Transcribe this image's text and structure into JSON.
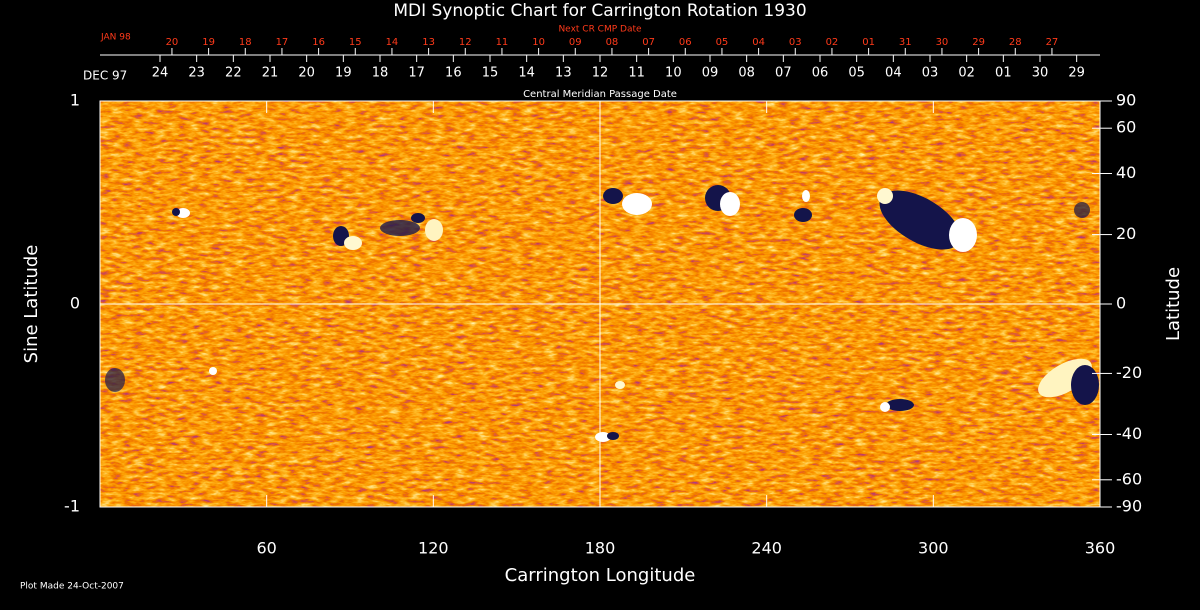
{
  "chart_data": {
    "type": "heatmap",
    "title": "MDI Synoptic Chart for Carrington Rotation 1930",
    "xlabel": "Carrington Longitude",
    "ylabel": "Sine Latitude",
    "y2label": "Latitude",
    "xlim": [
      0,
      360
    ],
    "xticks": [
      60,
      120,
      180,
      240,
      300,
      360
    ],
    "ylim": [
      -1,
      1
    ],
    "yticks": [
      -1,
      0,
      1
    ],
    "y2lim": [
      -90,
      90
    ],
    "y2scale": "sine",
    "y2ticks": [
      90,
      60,
      40,
      20,
      0,
      -20,
      -40,
      -60,
      -90
    ],
    "top_axis": {
      "label": "Central Meridian Passage Date",
      "month": "DEC 97",
      "color": "#ffffff",
      "ticks": [
        {
          "value": 21.6,
          "label": "24"
        },
        {
          "value": 34.8,
          "label": "23"
        },
        {
          "value": 48.0,
          "label": "22"
        },
        {
          "value": 61.2,
          "label": "21"
        },
        {
          "value": 74.4,
          "label": "20"
        },
        {
          "value": 87.6,
          "label": "19"
        },
        {
          "value": 100.8,
          "label": "18"
        },
        {
          "value": 114.0,
          "label": "17"
        },
        {
          "value": 127.2,
          "label": "16"
        },
        {
          "value": 140.4,
          "label": "15"
        },
        {
          "value": 153.6,
          "label": "14"
        },
        {
          "value": 166.8,
          "label": "13"
        },
        {
          "value": 180.0,
          "label": "12"
        },
        {
          "value": 193.2,
          "label": "11"
        },
        {
          "value": 206.4,
          "label": "10"
        },
        {
          "value": 219.6,
          "label": "09"
        },
        {
          "value": 232.8,
          "label": "08"
        },
        {
          "value": 246.0,
          "label": "07"
        },
        {
          "value": 259.2,
          "label": "06"
        },
        {
          "value": 272.4,
          "label": "05"
        },
        {
          "value": 285.6,
          "label": "04"
        },
        {
          "value": 298.8,
          "label": "03"
        },
        {
          "value": 312.0,
          "label": "02"
        },
        {
          "value": 325.2,
          "label": "01"
        },
        {
          "value": 338.4,
          "label": "30"
        },
        {
          "value": 351.6,
          "label": "29"
        }
      ]
    },
    "top_axis2": {
      "label": "Next CR CMP Date",
      "month": "JAN 98",
      "color": "#ff3a1a",
      "ticks": [
        {
          "value": 25.9,
          "label": "20"
        },
        {
          "value": 39.1,
          "label": "19"
        },
        {
          "value": 52.3,
          "label": "18"
        },
        {
          "value": 65.5,
          "label": "17"
        },
        {
          "value": 78.7,
          "label": "16"
        },
        {
          "value": 91.9,
          "label": "15"
        },
        {
          "value": 105.1,
          "label": "14"
        },
        {
          "value": 118.3,
          "label": "13"
        },
        {
          "value": 131.5,
          "label": "12"
        },
        {
          "value": 144.7,
          "label": "11"
        },
        {
          "value": 157.9,
          "label": "10"
        },
        {
          "value": 171.1,
          "label": "09"
        },
        {
          "value": 184.3,
          "label": "08"
        },
        {
          "value": 197.5,
          "label": "07"
        },
        {
          "value": 210.7,
          "label": "06"
        },
        {
          "value": 223.9,
          "label": "05"
        },
        {
          "value": 237.1,
          "label": "04"
        },
        {
          "value": 250.3,
          "label": "03"
        },
        {
          "value": 263.5,
          "label": "02"
        },
        {
          "value": 276.7,
          "label": "01"
        },
        {
          "value": 289.9,
          "label": "31"
        },
        {
          "value": 303.1,
          "label": "30"
        },
        {
          "value": 316.3,
          "label": "29"
        },
        {
          "value": 329.5,
          "label": "28"
        },
        {
          "value": 342.7,
          "label": "27"
        }
      ]
    },
    "footnote": "Plot Made 24-Oct-2007"
  }
}
